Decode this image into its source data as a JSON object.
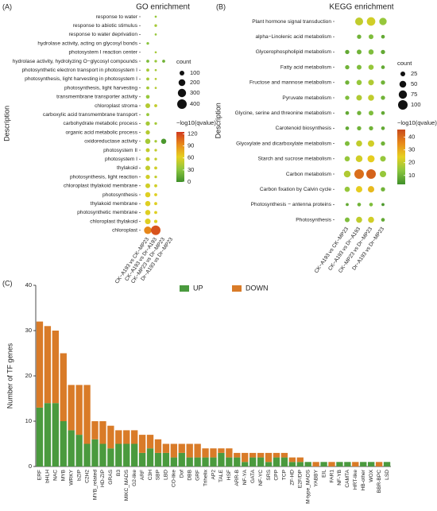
{
  "chart_data": [
    {
      "type": "dot",
      "panel_label": "(A)",
      "title": "GO enrichment",
      "y_label": "Description",
      "categories": [
        "response to water",
        "response to abiotic stimulus",
        "response to water deprivation",
        "hydrolase activity, acting on glycosyl bonds",
        "photosystem I reaction center",
        "hydrolase activity, hydrolyzing O−glycosyl compounds",
        "photosynthetic electron transport in photosystem I",
        "photosynthesis, light harvesting in photosystem I",
        "photosynthesis, light harvesting",
        "transmembrane transporter activity",
        "chloroplast stroma",
        "carboxylic acid transmembrane transport",
        "carbohydrate metabolic process",
        "organic acid metabolic process",
        "oxidoreductase activity",
        "photosystem II",
        "photosystem I",
        "thylakoid",
        "photosynthesis, light reaction",
        "chloroplast thylakoid membrane",
        "photosynthesis",
        "thylakoid membrane",
        "photosynthetic membrane",
        "chloroplast thylakoid",
        "chloroplast"
      ],
      "series": [
        {
          "name": "CK−A193 vs CK−MP23",
          "count": [
            null,
            null,
            null,
            30,
            null,
            40,
            40,
            40,
            40,
            60,
            100,
            40,
            80,
            80,
            120,
            70,
            70,
            100,
            80,
            100,
            120,
            120,
            120,
            140,
            250
          ],
          "neglog10_qvalue": [
            null,
            null,
            null,
            30,
            null,
            25,
            40,
            40,
            40,
            35,
            45,
            35,
            40,
            45,
            40,
            50,
            50,
            50,
            55,
            55,
            60,
            60,
            60,
            60,
            95
          ]
        },
        {
          "name": "CK−A193 vs Dr−A193",
          "count": [
            20,
            30,
            20,
            null,
            20,
            30,
            20,
            20,
            20,
            null,
            40,
            null,
            30,
            null,
            30,
            30,
            30,
            40,
            30,
            40,
            40,
            40,
            40,
            50,
            400
          ],
          "neglog10_qvalue": [
            35,
            40,
            35,
            null,
            40,
            35,
            40,
            45,
            45,
            null,
            50,
            null,
            40,
            null,
            40,
            50,
            50,
            55,
            50,
            55,
            60,
            60,
            60,
            60,
            115
          ]
        },
        {
          "name": "CK−MP23 vs Dr−MP23",
          "count": [
            null,
            null,
            null,
            null,
            null,
            40,
            null,
            null,
            null,
            null,
            null,
            null,
            null,
            null,
            120,
            null,
            null,
            null,
            null,
            null,
            null,
            null,
            null,
            null,
            null
          ],
          "neglog10_qvalue": [
            null,
            null,
            null,
            null,
            null,
            20,
            null,
            null,
            null,
            null,
            null,
            null,
            null,
            null,
            5,
            null,
            null,
            null,
            null,
            null,
            null,
            null,
            null,
            null,
            null
          ]
        },
        {
          "name": "Dr−A193 vs Dr−MP23",
          "count": [
            null,
            null,
            null,
            null,
            null,
            null,
            null,
            null,
            null,
            null,
            null,
            null,
            null,
            null,
            null,
            null,
            null,
            null,
            null,
            null,
            null,
            null,
            null,
            null,
            null
          ],
          "neglog10_qvalue": [
            null,
            null,
            null,
            null,
            null,
            null,
            null,
            null,
            null,
            null,
            null,
            null,
            null,
            null,
            null,
            null,
            null,
            null,
            null,
            null,
            null,
            null,
            null,
            null,
            null
          ]
        }
      ],
      "size_legend_title": "count",
      "size_ticks": [
        100,
        200,
        300,
        400
      ],
      "color_legend_title": "−log10(qvalue)",
      "clim": [
        0,
        125
      ],
      "cticks": [
        0,
        30,
        60,
        90,
        120
      ],
      "colormap": [
        "#3f8f2a",
        "#8cc63f",
        "#e6d020",
        "#e88a1a",
        "#d0391f"
      ]
    },
    {
      "type": "dot",
      "panel_label": "(B)",
      "title": "KEGG enrichment",
      "y_label": "Description",
      "categories": [
        "Plant hormone signal transduction",
        "alpha−Linolenic acid metabolism",
        "Glycerophospholipid metabolism",
        "Fatty acid metabolism",
        "Fructose and mannose metabolism",
        "Pyruvate metabolism",
        "Glycine, serine and threonine metabolism",
        "Carotenoid biosynthesis",
        "Glyoxylate and dicarboxylate metabolism",
        "Starch and sucrose metabolism",
        "Carbon metabolism",
        "Carbon fixation by Calvin cycle",
        "Photosynthesis − antenna proteins",
        "Photosynthesis"
      ],
      "series": [
        {
          "name": "CK−A193 vs CK−MP23",
          "count": [
            null,
            null,
            20,
            20,
            20,
            20,
            15,
            15,
            25,
            30,
            50,
            30,
            10,
            25
          ],
          "neglog10_qvalue": [
            null,
            null,
            8,
            10,
            10,
            12,
            8,
            8,
            12,
            15,
            18,
            15,
            8,
            12
          ]
        },
        {
          "name": "CK−A193 vs Dr−A193",
          "count": [
            70,
            20,
            25,
            25,
            30,
            35,
            20,
            20,
            40,
            50,
            100,
            45,
            15,
            40
          ],
          "neglog10_qvalue": [
            20,
            10,
            10,
            12,
            15,
            18,
            10,
            10,
            20,
            22,
            40,
            25,
            10,
            20
          ]
        },
        {
          "name": "CK−MP23 vs Dr−MP23",
          "count": [
            80,
            25,
            30,
            30,
            35,
            40,
            25,
            20,
            45,
            55,
            100,
            45,
            15,
            40
          ],
          "neglog10_qvalue": [
            22,
            12,
            12,
            15,
            18,
            20,
            12,
            10,
            22,
            25,
            42,
            28,
            12,
            22
          ]
        },
        {
          "name": "Dr−A193 vs Dr−MP23",
          "count": [
            60,
            15,
            20,
            15,
            20,
            20,
            15,
            15,
            20,
            35,
            45,
            20,
            10,
            15
          ],
          "neglog10_qvalue": [
            15,
            8,
            8,
            8,
            10,
            10,
            8,
            8,
            10,
            15,
            15,
            10,
            5,
            8
          ]
        }
      ],
      "size_legend_title": "count",
      "size_ticks": [
        25,
        50,
        75,
        100
      ],
      "color_legend_title": "−log10(qvalue)",
      "clim": [
        3,
        46
      ],
      "cticks": [
        10,
        20,
        30,
        40
      ],
      "colormap": [
        "#3f8f2a",
        "#8cc63f",
        "#e6d020",
        "#e88a1a",
        "#c84a1c"
      ]
    },
    {
      "type": "bar",
      "stacked": true,
      "panel_label": "(C)",
      "y_label": "Number of TF genes",
      "categories": [
        "ERF",
        "bHLH",
        "NAC",
        "MYB",
        "WRKY",
        "bZIP",
        "C2H2",
        "MYB_related",
        "HD-ZIP",
        "GRAS",
        "B3",
        "MIKC_MADS",
        "G2-like",
        "ARF",
        "C3H",
        "SBP",
        "LBD",
        "CO-like",
        "Dof",
        "DBB",
        "GRF",
        "Trihelix",
        "AP2",
        "TALE",
        "HSF",
        "ARR-B",
        "NF-YA",
        "GATA",
        "NF-YC",
        "SRS",
        "CPP",
        "TCP",
        "ZF-HD",
        "E2F/DP",
        "M-type_MADS",
        "YABBY",
        "EIL",
        "FAR1",
        "NF-YB",
        "CAMTA",
        "HRT-like",
        "HB-other",
        "WOX",
        "BBR-BPC",
        "LSD"
      ],
      "series": [
        {
          "name": "UP",
          "color": "#4a9a3e",
          "values": [
            13,
            14,
            14,
            10,
            8,
            7,
            5,
            6,
            5,
            4,
            5,
            5,
            5,
            3,
            4,
            3,
            3,
            2,
            3,
            2,
            2,
            2,
            2,
            3,
            2,
            2,
            1,
            2,
            2,
            1,
            2,
            2,
            1,
            1,
            1,
            0,
            1,
            0,
            1,
            1,
            0,
            1,
            1,
            0,
            1
          ]
        },
        {
          "name": "DOWN",
          "color": "#d97b28",
          "values": [
            19,
            17,
            16,
            15,
            10,
            11,
            13,
            4,
            5,
            5,
            3,
            3,
            3,
            4,
            3,
            3,
            2,
            3,
            2,
            3,
            3,
            2,
            2,
            1,
            2,
            1,
            2,
            1,
            1,
            2,
            1,
            1,
            1,
            1,
            0,
            1,
            0,
            1,
            0,
            0,
            1,
            0,
            0,
            1,
            0
          ]
        }
      ],
      "ylim": [
        0,
        40
      ],
      "yticks": [
        0,
        10,
        20,
        30,
        40
      ]
    }
  ]
}
